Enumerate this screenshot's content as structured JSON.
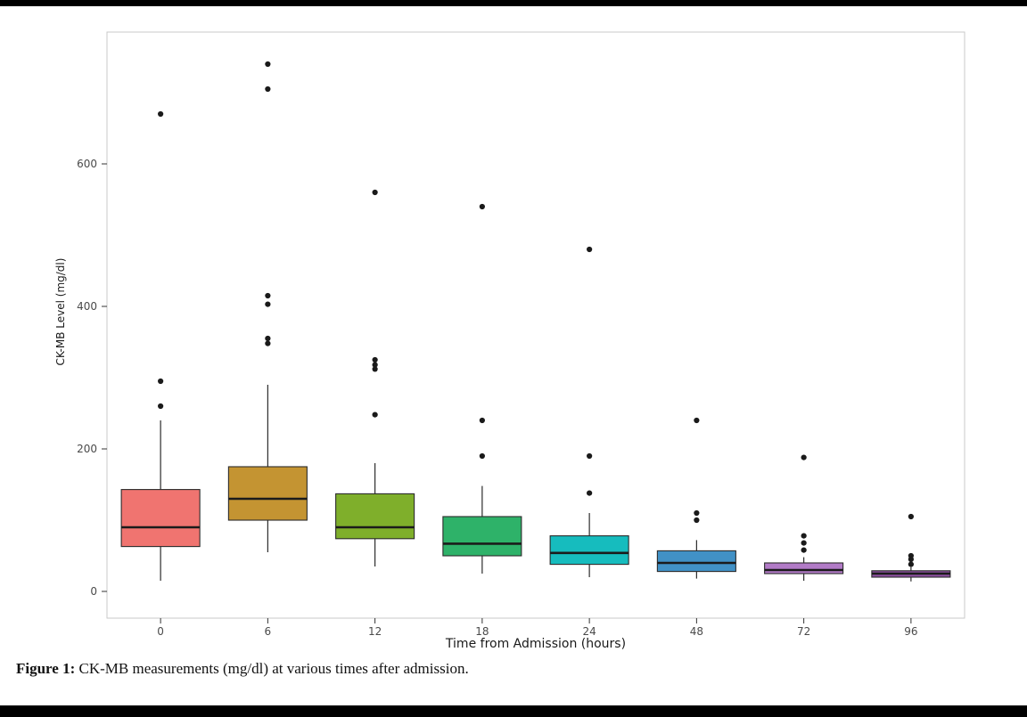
{
  "page": {
    "background": "#ffffff",
    "top_bar_color": "#000000",
    "bottom_bar_color": "#000000"
  },
  "caption": {
    "label": "Figure 1:",
    "text": " CK-MB measurements (mg/dl) at various times after admission."
  },
  "chart_data": {
    "type": "boxplot",
    "title": "",
    "xlabel": "Time from Admission (hours)",
    "ylabel": "CK-MB Level (mg/dl)",
    "categories": [
      "0",
      "6",
      "12",
      "18",
      "24",
      "48",
      "72",
      "96"
    ],
    "ylim": [
      0,
      790
    ],
    "yticks": [
      0,
      200,
      400,
      600
    ],
    "grid": false,
    "legend": "none",
    "panel_border_color": "#c9c9c9",
    "box_stroke_color": "#2b2b2b",
    "median_color": "#1b1b1b",
    "outlier_color": "#1a1a1a",
    "tick_label_color": "#4a4a4a",
    "axis_title_color": "#1a1a1a",
    "series": [
      {
        "category": "0",
        "color": "#F07470",
        "low": 15,
        "q1": 63,
        "median": 90,
        "q3": 143,
        "high": 240,
        "outliers": [
          260,
          295,
          670
        ]
      },
      {
        "category": "6",
        "color": "#C49432",
        "low": 55,
        "q1": 100,
        "median": 130,
        "q3": 175,
        "high": 290,
        "outliers": [
          348,
          355,
          403,
          415,
          705,
          740
        ]
      },
      {
        "category": "12",
        "color": "#7FAF2B",
        "low": 35,
        "q1": 74,
        "median": 90,
        "q3": 137,
        "high": 180,
        "outliers": [
          248,
          312,
          318,
          325,
          560
        ]
      },
      {
        "category": "18",
        "color": "#2EB269",
        "low": 25,
        "q1": 50,
        "median": 67,
        "q3": 105,
        "high": 148,
        "outliers": [
          190,
          240,
          540
        ]
      },
      {
        "category": "24",
        "color": "#16BCBE",
        "low": 20,
        "q1": 38,
        "median": 54,
        "q3": 78,
        "high": 110,
        "outliers": [
          138,
          190,
          480
        ]
      },
      {
        "category": "48",
        "color": "#4191C6",
        "low": 18,
        "q1": 28,
        "median": 40,
        "q3": 57,
        "high": 72,
        "outliers": [
          100,
          110,
          240
        ]
      },
      {
        "category": "72",
        "color": "#B27BC7",
        "low": 15,
        "q1": 25,
        "median": 30,
        "q3": 40,
        "high": 48,
        "outliers": [
          58,
          68,
          78,
          188
        ]
      },
      {
        "category": "96",
        "color": "#8C4F9F",
        "low": 14,
        "q1": 20,
        "median": 25,
        "q3": 29,
        "high": 34,
        "outliers": [
          38,
          45,
          50,
          105
        ]
      }
    ]
  }
}
